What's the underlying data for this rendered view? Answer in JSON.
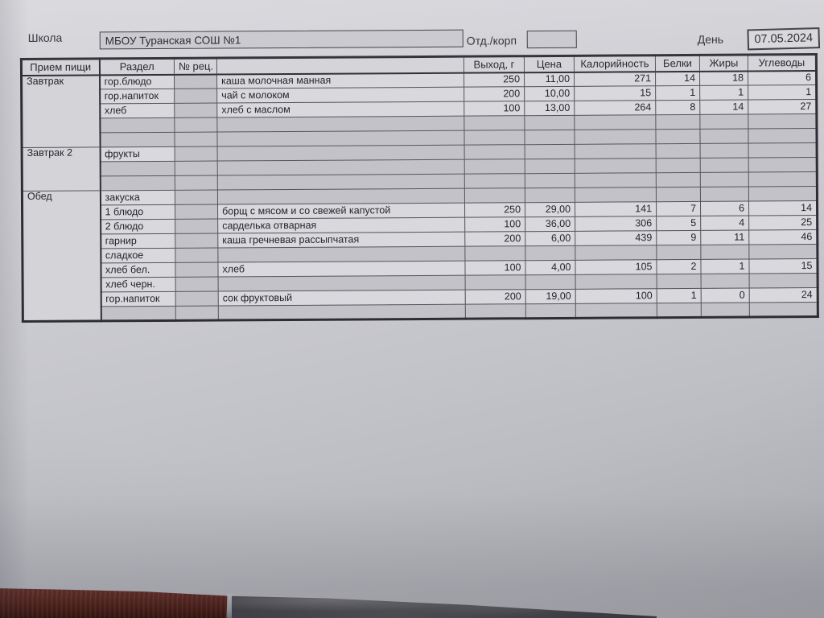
{
  "form": {
    "school_label": "Школа",
    "school_name": "МБОУ Туранская СОШ №1",
    "dept_label": "Отд./корп",
    "dept_value": "",
    "day_label": "День",
    "date_value": "07.05.2024"
  },
  "table": {
    "headers": [
      "Прием пищи",
      "Раздел",
      "№ рец.",
      "",
      "Выход, г",
      "Цена",
      "Калорийность",
      "Белки",
      "Жиры",
      "Углеводы"
    ],
    "sections": [
      {
        "meal": "Завтрак",
        "rows": [
          [
            "гор.блюдо",
            "",
            "каша молочная манная",
            "250",
            "11,00",
            "271",
            "14",
            "18",
            "6"
          ],
          [
            "гор.напиток",
            "",
            "чай с молоком",
            "200",
            "10,00",
            "15",
            "1",
            "1",
            "1"
          ],
          [
            "хлеб",
            "",
            "хлеб с маслом",
            "100",
            "13,00",
            "264",
            "8",
            "14",
            "27"
          ],
          [
            "",
            "",
            "",
            "",
            "",
            "",
            "",
            "",
            ""
          ],
          [
            "",
            "",
            "",
            "",
            "",
            "",
            "",
            "",
            ""
          ]
        ]
      },
      {
        "meal": "Завтрак 2",
        "rows": [
          [
            "фрукты",
            "",
            "",
            "",
            "",
            "",
            "",
            "",
            ""
          ],
          [
            "",
            "",
            "",
            "",
            "",
            "",
            "",
            "",
            ""
          ],
          [
            "",
            "",
            "",
            "",
            "",
            "",
            "",
            "",
            ""
          ]
        ]
      },
      {
        "meal": "Обед",
        "rows": [
          [
            "закуска",
            "",
            "",
            "",
            "",
            "",
            "",
            "",
            ""
          ],
          [
            "1 блюдо",
            "",
            "борщ с мясом и со свежей капустой",
            "250",
            "29,00",
            "141",
            "7",
            "6",
            "14"
          ],
          [
            "2 блюдо",
            "",
            "сарделька отварная",
            "100",
            "36,00",
            "306",
            "5",
            "4",
            "25"
          ],
          [
            "гарнир",
            "",
            "каша гречневая рассыпчатая",
            "200",
            "6,00",
            "439",
            "9",
            "11",
            "46"
          ],
          [
            "сладкое",
            "",
            "",
            "",
            "",
            "",
            "",
            "",
            ""
          ],
          [
            "хлеб бел.",
            "",
            "хлеб",
            "100",
            "4,00",
            "105",
            "2",
            "1",
            "15"
          ],
          [
            "хлеб черн.",
            "",
            "",
            "",
            "",
            "",
            "",
            "",
            ""
          ],
          [
            "гор.напиток",
            "",
            "сок фруктовый",
            "200",
            "19,00",
            "100",
            "1",
            "0",
            "24"
          ],
          [
            "",
            "",
            "",
            "",
            "",
            "",
            "",
            "",
            ""
          ]
        ]
      }
    ]
  },
  "colors": {
    "paper": "#c9c9ce",
    "cell_filled": "#d8d8dd",
    "cell_empty": "#c2c2c8",
    "table_border": "#2e2d33",
    "wood_edge": "#5a251e",
    "marble_surface": "#464549"
  }
}
